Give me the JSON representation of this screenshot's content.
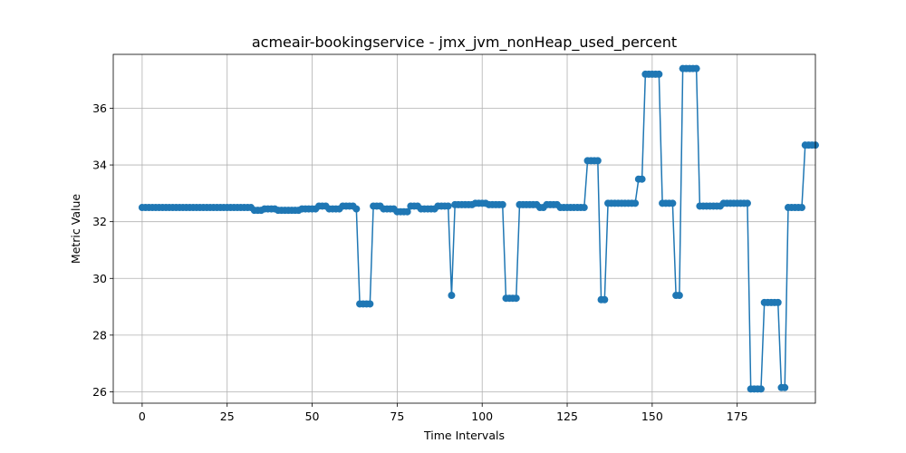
{
  "chart_data": {
    "type": "line",
    "title": "acmeair-bookingservice - jmx_jvm_nonHeap_used_percent",
    "xlabel": "Time Intervals",
    "ylabel": "Metric Value",
    "xlim": [
      -8.5,
      198
    ],
    "ylim": [
      25.6,
      37.9
    ],
    "xticks": [
      0,
      25,
      50,
      75,
      100,
      125,
      150,
      175
    ],
    "yticks": [
      26,
      28,
      30,
      32,
      34,
      36
    ],
    "grid": true,
    "series": [
      {
        "color": "#1f77b4",
        "marker": "circle",
        "values": [
          32.5,
          32.5,
          32.5,
          32.5,
          32.5,
          32.5,
          32.5,
          32.5,
          32.5,
          32.5,
          32.5,
          32.5,
          32.5,
          32.5,
          32.5,
          32.5,
          32.5,
          32.5,
          32.5,
          32.5,
          32.5,
          32.5,
          32.5,
          32.5,
          32.5,
          32.5,
          32.5,
          32.5,
          32.5,
          32.5,
          32.5,
          32.5,
          32.5,
          32.4,
          32.4,
          32.4,
          32.45,
          32.45,
          32.45,
          32.45,
          32.4,
          32.4,
          32.4,
          32.4,
          32.4,
          32.4,
          32.4,
          32.45,
          32.45,
          32.45,
          32.45,
          32.45,
          32.55,
          32.55,
          32.55,
          32.45,
          32.45,
          32.45,
          32.45,
          32.55,
          32.55,
          32.55,
          32.55,
          32.45,
          29.1,
          29.1,
          29.1,
          29.1,
          32.55,
          32.55,
          32.55,
          32.45,
          32.45,
          32.45,
          32.45,
          32.35,
          32.35,
          32.35,
          32.35,
          32.55,
          32.55,
          32.55,
          32.45,
          32.45,
          32.45,
          32.45,
          32.45,
          32.55,
          32.55,
          32.55,
          32.55,
          29.4,
          32.6,
          32.6,
          32.6,
          32.6,
          32.6,
          32.6,
          32.65,
          32.65,
          32.65,
          32.65,
          32.6,
          32.6,
          32.6,
          32.6,
          32.6,
          29.3,
          29.3,
          29.3,
          29.3,
          32.6,
          32.6,
          32.6,
          32.6,
          32.6,
          32.6,
          32.5,
          32.5,
          32.6,
          32.6,
          32.6,
          32.6,
          32.5,
          32.5,
          32.5,
          32.5,
          32.5,
          32.5,
          32.5,
          32.5,
          34.15,
          34.15,
          34.15,
          34.15,
          29.25,
          29.25,
          32.65,
          32.65,
          32.65,
          32.65,
          32.65,
          32.65,
          32.65,
          32.65,
          32.65,
          33.5,
          33.5,
          37.2,
          37.2,
          37.2,
          37.2,
          37.2,
          32.65,
          32.65,
          32.65,
          32.65,
          29.4,
          29.4,
          37.4,
          37.4,
          37.4,
          37.4,
          37.4,
          32.55,
          32.55,
          32.55,
          32.55,
          32.55,
          32.55,
          32.55,
          32.65,
          32.65,
          32.65,
          32.65,
          32.65,
          32.65,
          32.65,
          32.65,
          26.1,
          26.1,
          26.1,
          26.1,
          29.15,
          29.15,
          29.15,
          29.15,
          29.15,
          26.15,
          26.15,
          32.5,
          32.5,
          32.5,
          32.5,
          32.5,
          34.7,
          34.7,
          34.7,
          34.7
        ]
      }
    ]
  }
}
